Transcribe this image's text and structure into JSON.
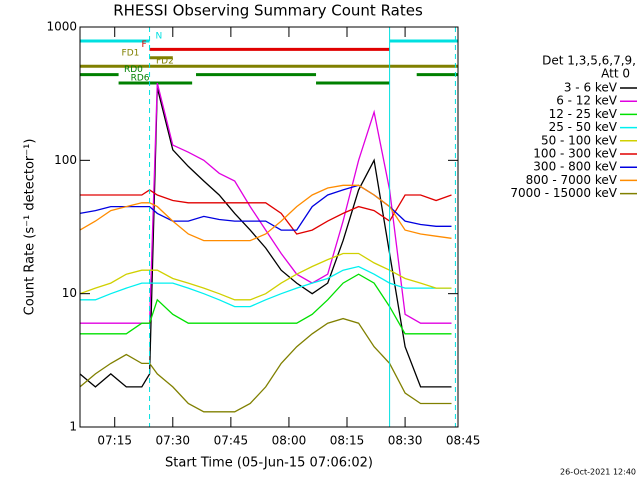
{
  "chart_data": {
    "type": "line",
    "title": "RHESSI Observing Summary Count Rates",
    "xlabel": "Start Time (05-Jun-15 07:06:02)",
    "ylabel": "Count Rate (s⁻¹ detector⁻¹)",
    "footer": "26-Oct-2021 12:40",
    "legend_title": [
      "Det 1,3,5,6,7,9,",
      "Att 0"
    ],
    "log_y": true,
    "xlim": [
      "07:06:02",
      "08:43:40"
    ],
    "ylim": [
      1,
      1000
    ],
    "yticks": [
      1,
      10,
      100,
      1000
    ],
    "xticks": [
      "07:15",
      "07:30",
      "07:45",
      "08:00",
      "08:15",
      "08:30",
      "08:45"
    ],
    "x": [
      "07:06",
      "07:10",
      "07:14",
      "07:18",
      "07:22",
      "07:24",
      "07:26",
      "07:30",
      "07:34",
      "07:38",
      "07:42",
      "07:46",
      "07:50",
      "07:54",
      "07:58",
      "08:02",
      "08:06",
      "08:10",
      "08:14",
      "08:18",
      "08:22",
      "08:26",
      "08:30",
      "08:34",
      "08:38",
      "08:42"
    ],
    "series": [
      {
        "name": "3 - 6 keV",
        "color": "#000000",
        "values": [
          2.5,
          2,
          2.5,
          2,
          2,
          2.5,
          350,
          120,
          90,
          70,
          55,
          40,
          30,
          22,
          15,
          12,
          10,
          12,
          25,
          60,
          100,
          20,
          4,
          2,
          2,
          2
        ]
      },
      {
        "name": "6 - 12 keV",
        "color": "#e000e0",
        "values": [
          6,
          6,
          6,
          6,
          6,
          6,
          380,
          130,
          115,
          100,
          80,
          70,
          45,
          30,
          20,
          14,
          12,
          14,
          35,
          100,
          230,
          60,
          7,
          6,
          6,
          6
        ]
      },
      {
        "name": "12 - 25 keV",
        "color": "#00e000",
        "values": [
          5,
          5,
          5,
          5,
          6,
          6,
          9,
          7,
          6,
          6,
          6,
          6,
          6,
          6,
          6,
          6,
          7,
          9,
          12,
          14,
          12,
          8,
          5,
          5,
          5,
          5
        ]
      },
      {
        "name": "25 - 50 keV",
        "color": "#00f0f0",
        "values": [
          9,
          9,
          10,
          11,
          12,
          12,
          12,
          12,
          11,
          10,
          9,
          8,
          8,
          9,
          10,
          11,
          12,
          13,
          15,
          16,
          14,
          12,
          11,
          11,
          11,
          11
        ]
      },
      {
        "name": "50 - 100 keV",
        "color": "#d0d000",
        "values": [
          10,
          11,
          12,
          14,
          15,
          15,
          15,
          13,
          12,
          11,
          10,
          9,
          9,
          10,
          12,
          14,
          16,
          18,
          20,
          20,
          17,
          15,
          13,
          12,
          11,
          11
        ]
      },
      {
        "name": "100 - 300 keV",
        "color": "#e00000",
        "values": [
          55,
          55,
          55,
          55,
          55,
          60,
          55,
          50,
          48,
          48,
          48,
          48,
          48,
          48,
          40,
          28,
          30,
          35,
          40,
          45,
          42,
          35,
          55,
          55,
          50,
          55
        ]
      },
      {
        "name": "300 - 800 keV",
        "color": "#0000e0",
        "values": [
          40,
          42,
          45,
          45,
          45,
          45,
          40,
          35,
          35,
          38,
          36,
          35,
          35,
          35,
          30,
          30,
          45,
          55,
          60,
          65,
          55,
          45,
          35,
          33,
          32,
          32
        ]
      },
      {
        "name": "800 - 7000 keV",
        "color": "#ff8c00",
        "values": [
          30,
          35,
          42,
          45,
          48,
          48,
          45,
          35,
          28,
          25,
          25,
          25,
          25,
          28,
          35,
          45,
          55,
          62,
          65,
          65,
          55,
          45,
          30,
          28,
          27,
          26
        ]
      },
      {
        "name": "7000 - 15000 keV",
        "color": "#808000",
        "values": [
          2,
          2.5,
          3,
          3.5,
          3,
          3,
          2.5,
          2,
          1.5,
          1.3,
          1.3,
          1.3,
          1.5,
          2,
          3,
          4,
          5,
          6,
          6.5,
          6,
          4,
          3,
          1.8,
          1.5,
          1.5,
          1.5
        ]
      }
    ],
    "flags": [
      {
        "label": "N",
        "color": "#00e0e0",
        "intervals": [
          [
            "07:06:02",
            "07:24"
          ],
          [
            "08:26",
            "08:43:40"
          ]
        ]
      },
      {
        "label": "F",
        "color": "#e00000",
        "intervals": [
          [
            "07:24",
            "08:26"
          ]
        ]
      },
      {
        "label": "FD1",
        "color": "#808000",
        "intervals": [
          [
            "07:24",
            "07:30"
          ]
        ]
      },
      {
        "label": "FD2",
        "color": "#808000",
        "intervals": [
          [
            "07:06:02",
            "08:43:40"
          ]
        ]
      },
      {
        "label": "RD0",
        "color": "#008000",
        "intervals": [
          [
            "07:06:02",
            "07:16"
          ],
          [
            "07:36",
            "08:07"
          ],
          [
            "08:33",
            "08:43:40"
          ]
        ]
      },
      {
        "label": "RD6",
        "color": "#008000",
        "intervals": [
          [
            "07:16",
            "07:35"
          ],
          [
            "08:07",
            "08:26"
          ]
        ]
      }
    ],
    "vlines": [
      {
        "x": "07:06:02",
        "style": "solid",
        "color": "#00e0e0"
      },
      {
        "x": "07:24",
        "style": "dashed",
        "color": "#00e0e0"
      },
      {
        "x": "08:26",
        "style": "solid",
        "color": "#00e0e0"
      },
      {
        "x": "08:43",
        "style": "dashed",
        "color": "#00e0e0"
      }
    ]
  }
}
